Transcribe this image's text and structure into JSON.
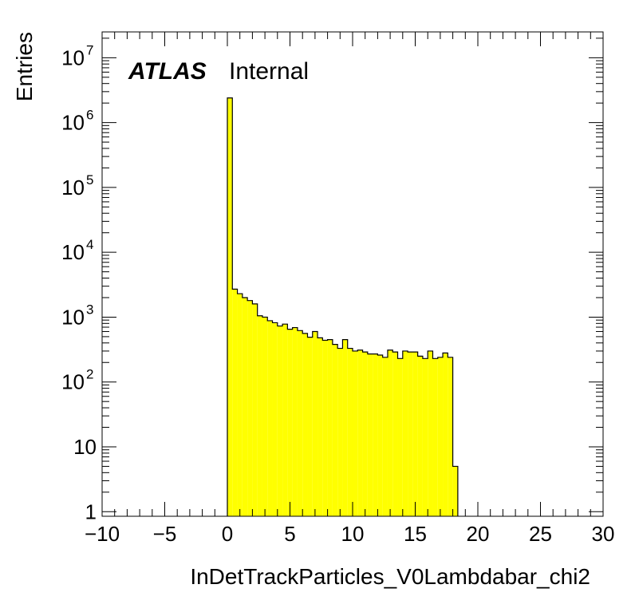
{
  "chart_data": {
    "type": "histogram",
    "title": "",
    "xlabel": "InDetTrackParticles_V0Lambdabar_chi2",
    "ylabel": "Entries",
    "xlim": [
      -10,
      30
    ],
    "ylim": [
      0.85,
      25000000
    ],
    "yscale": "log",
    "fill_color": "#ffff00",
    "line_color": "#000000",
    "grid": false,
    "x_ticks": [
      -10,
      -5,
      0,
      5,
      10,
      15,
      20,
      25,
      30
    ],
    "x_tick_labels": [
      "−10",
      "−5",
      "0",
      "5",
      "10",
      "15",
      "20",
      "25",
      "30"
    ],
    "y_ticks": [
      {
        "value": 1,
        "base": "1",
        "exp": ""
      },
      {
        "value": 10,
        "base": "10",
        "exp": ""
      },
      {
        "value": 100,
        "base": "10",
        "exp": "2"
      },
      {
        "value": 1000,
        "base": "10",
        "exp": "3"
      },
      {
        "value": 10000,
        "base": "10",
        "exp": "4"
      },
      {
        "value": 100000,
        "base": "10",
        "exp": "5"
      },
      {
        "value": 1000000,
        "base": "10",
        "exp": "6"
      },
      {
        "value": 10000000,
        "base": "10",
        "exp": "7"
      }
    ],
    "bin_width": 0.4,
    "bin_start": 0,
    "values": [
      2400000,
      2700,
      2300,
      2000,
      1800,
      1600,
      1050,
      1000,
      880,
      820,
      730,
      780,
      650,
      690,
      620,
      560,
      490,
      600,
      480,
      440,
      450,
      380,
      330,
      450,
      330,
      300,
      310,
      290,
      270,
      270,
      260,
      240,
      310,
      290,
      230,
      300,
      290,
      290,
      250,
      230,
      300,
      230,
      240,
      280,
      240,
      5
    ]
  },
  "labels": {
    "atlas": "ATLAS",
    "internal": "Internal"
  }
}
